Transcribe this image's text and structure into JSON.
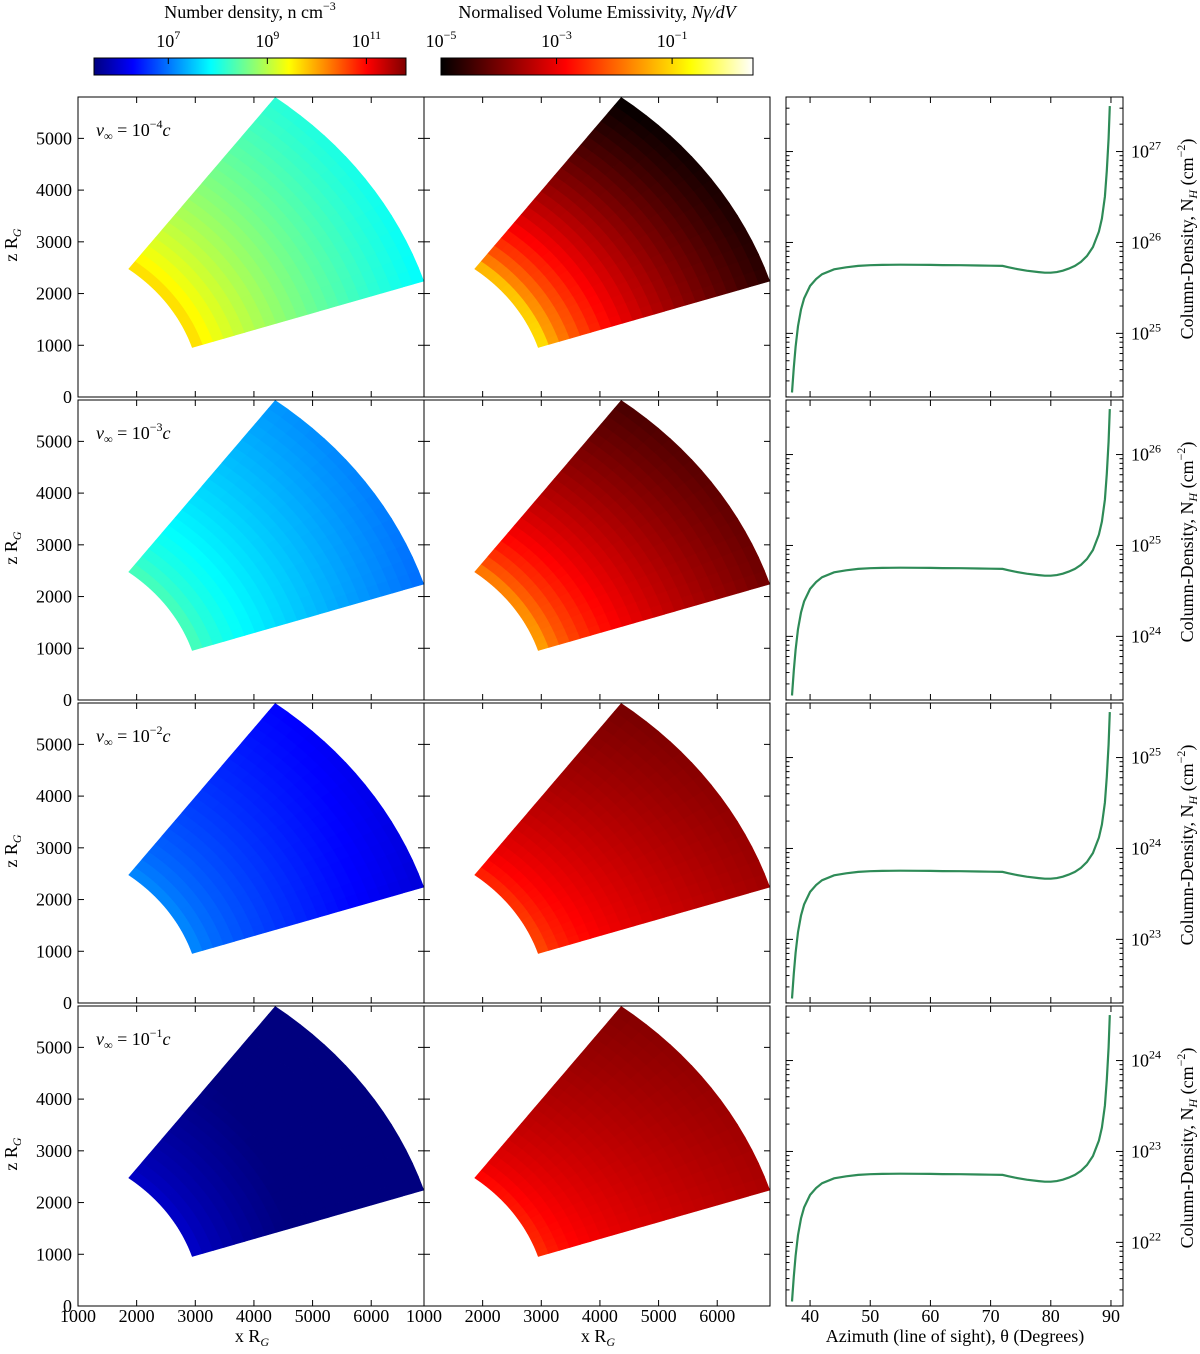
{
  "colorbars": {
    "density": {
      "label": "Number density, n   cm",
      "label_exp": "−3",
      "ticks": [
        {
          "base": "10",
          "exp": "7"
        },
        {
          "base": "10",
          "exp": "9"
        },
        {
          "base": "10",
          "exp": "11"
        }
      ],
      "range_log": [
        5.5,
        11.8
      ],
      "colormap": "jet",
      "colors": [
        "#00007f",
        "#0000ff",
        "#0080ff",
        "#00ffff",
        "#80ff80",
        "#ffff00",
        "#ff8000",
        "#ff0000",
        "#7f0000"
      ]
    },
    "emissivity": {
      "label": "Normalised Volume Emissivity, ",
      "label_math": "Nγ/dV",
      "ticks": [
        {
          "base": "10",
          "exp": "−5"
        },
        {
          "base": "10",
          "exp": "−3"
        },
        {
          "base": "10",
          "exp": "−1"
        }
      ],
      "range_log": [
        -5,
        0.4
      ],
      "colormap": "hot",
      "colors": [
        "#000000",
        "#800000",
        "#ff0000",
        "#ff8000",
        "#ffff00",
        "#ffffff"
      ]
    }
  },
  "panel_labels": [
    {
      "prefix": "v",
      "sub": "∞",
      "eq": " = 10",
      "exp": "−4",
      "suffix": "c"
    },
    {
      "prefix": "v",
      "sub": "∞",
      "eq": " = 10",
      "exp": "−3",
      "suffix": "c"
    },
    {
      "prefix": "v",
      "sub": "∞",
      "eq": " = 10",
      "exp": "−2",
      "suffix": "c"
    },
    {
      "prefix": "v",
      "sub": "∞",
      "eq": " = 10",
      "exp": "−1",
      "suffix": "c"
    }
  ],
  "axes": {
    "map_xlabel": "x   R",
    "map_xlabel_sub": "G",
    "map_ylabel": "z   R",
    "map_ylabel_sub": "G",
    "map_xticks": [
      "1000",
      "2000",
      "3000",
      "4000",
      "5000",
      "6000",
      "1000",
      "2000",
      "3000",
      "4000",
      "5000",
      "6000"
    ],
    "map_yticks": [
      "0",
      "1000",
      "2000",
      "3000",
      "4000",
      "5000"
    ],
    "col_xlabel": "Azimuth (line of sight), θ   (Degrees)",
    "col_xticks": [
      "40",
      "50",
      "60",
      "70",
      "80",
      "90"
    ],
    "col_ylabel": "Column-Density, N",
    "col_ylabel_sub": "H",
    "col_ylabel_unit": "(cm",
    "col_ylabel_unit_exp": "−2",
    "col_ylabel_unit_close": ")"
  },
  "chart_data": [
    {
      "type": "heatmap",
      "panel": "number_density_wedge",
      "rows": [
        "v∞ = 10^-4 c",
        "v∞ = 10^-3 c",
        "v∞ = 10^-2 c",
        "v∞ = 10^-1 c"
      ],
      "xlabel": "x R_G",
      "ylabel": "z R_G",
      "xlim": [
        1000,
        6900
      ],
      "ylim": [
        0,
        5800
      ],
      "wedge": {
        "r_inner": 1000,
        "r_outer": 7250,
        "theta_min_deg": 18,
        "theta_max_deg": 53
      },
      "log_density_center": [
        8.6,
        7.6,
        6.6,
        5.6
      ],
      "log_density_inner": [
        9.8,
        8.4,
        7.2,
        6.0
      ],
      "log_density_outer": [
        8.1,
        7.2,
        6.3,
        5.3
      ]
    },
    {
      "type": "heatmap",
      "panel": "normalised_volume_emissivity_wedge",
      "xlabel": "x R_G",
      "xlim": [
        1000,
        6900
      ],
      "ylim": [
        0,
        5800
      ],
      "log_emissivity_inner": [
        -0.5,
        -1.3,
        -2.3,
        -2.6
      ],
      "log_emissivity_mid": [
        -3.8,
        -3.0,
        -3.2,
        -3.4
      ],
      "log_emissivity_outer": [
        -5.0,
        -4.4,
        -4.0,
        -3.9
      ]
    },
    {
      "type": "line",
      "panel": "column_density_vs_azimuth",
      "xlabel": "Azimuth (line of sight), θ (Degrees)",
      "ylabel": "Column-Density, N_H (cm^-2)",
      "y_scale": "log",
      "color": "#2e8b57",
      "x": [
        37,
        37.3,
        37.6,
        38,
        38.5,
        39,
        40,
        41,
        42,
        44,
        46,
        48,
        50,
        52,
        55,
        58,
        60,
        62,
        65,
        68,
        70,
        72,
        73,
        74,
        76,
        78,
        79,
        80,
        81,
        82,
        83,
        84,
        85,
        86,
        87,
        88,
        88.5,
        89,
        89.3,
        89.6,
        89.8
      ],
      "series_shape": [
        0,
        0.18,
        0.33,
        0.48,
        0.6,
        0.68,
        0.77,
        0.82,
        0.855,
        0.89,
        0.905,
        0.915,
        0.92,
        0.922,
        0.924,
        0.923,
        0.922,
        0.921,
        0.92,
        0.918,
        0.916,
        0.915,
        0.905,
        0.895,
        0.88,
        0.87,
        0.866,
        0.866,
        0.87,
        0.88,
        0.895,
        0.915,
        0.945,
        0.99,
        1.06,
        1.18,
        1.28,
        1.45,
        1.65,
        1.9,
        2.15
      ],
      "rows": [
        {
          "ylim_log": [
            24.3,
            27.6
          ],
          "yticks": [
            {
              "base": "10",
              "exp": "25"
            },
            {
              "base": "10",
              "exp": "26"
            },
            {
              "base": "10",
              "exp": "27"
            }
          ],
          "ytick_logs": [
            25,
            26,
            27
          ],
          "y_start_log": 24.35,
          "y_plateau_log": 25.75,
          "y_end_log": 27.5
        },
        {
          "ylim_log": [
            23.3,
            26.6
          ],
          "yticks": [
            {
              "base": "10",
              "exp": "24"
            },
            {
              "base": "10",
              "exp": "25"
            },
            {
              "base": "10",
              "exp": "26"
            }
          ],
          "ytick_logs": [
            24,
            25,
            26
          ],
          "y_start_log": 23.35,
          "y_plateau_log": 24.75,
          "y_end_log": 26.5
        },
        {
          "ylim_log": [
            22.3,
            25.6
          ],
          "yticks": [
            {
              "base": "10",
              "exp": "23"
            },
            {
              "base": "10",
              "exp": "24"
            },
            {
              "base": "10",
              "exp": "25"
            }
          ],
          "ytick_logs": [
            23,
            24,
            25
          ],
          "y_start_log": 22.35,
          "y_plateau_log": 23.75,
          "y_end_log": 25.5
        },
        {
          "ylim_log": [
            21.3,
            24.6
          ],
          "yticks": [
            {
              "base": "10",
              "exp": "22"
            },
            {
              "base": "10",
              "exp": "23"
            },
            {
              "base": "10",
              "exp": "24"
            }
          ],
          "ytick_logs": [
            22,
            23,
            24
          ],
          "y_start_log": 21.35,
          "y_plateau_log": 22.75,
          "y_end_log": 24.5
        }
      ]
    }
  ]
}
